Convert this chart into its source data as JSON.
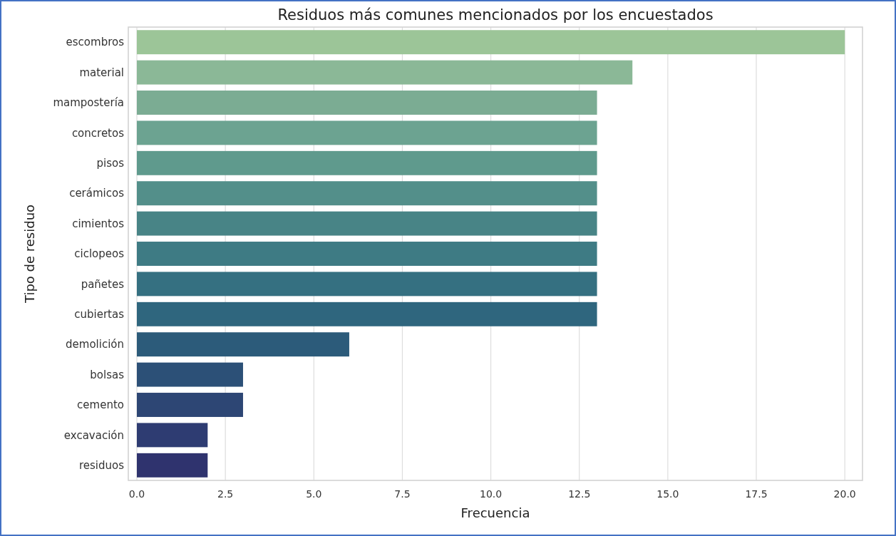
{
  "chart_data": {
    "type": "bar",
    "orientation": "horizontal",
    "title": "Residuos más comunes mencionados por los encuestados",
    "xlabel": "Frecuencia",
    "ylabel": "Tipo de residuo",
    "categories": [
      "escombros",
      "material",
      "mampostería",
      "concretos",
      "pisos",
      "cerámicos",
      "cimientos",
      "ciclopeos",
      "pañetes",
      "cubiertas",
      "demolición",
      "bolsas",
      "cemento",
      "excavación",
      "residuos"
    ],
    "values": [
      20,
      14,
      13,
      13,
      13,
      13,
      13,
      13,
      13,
      13,
      6,
      3,
      3,
      2,
      2
    ],
    "colors": [
      "#9cc598",
      "#8bb897",
      "#7bac93",
      "#6ca391",
      "#5f9a8d",
      "#538f8a",
      "#488486",
      "#3e7b84",
      "#357081",
      "#2f667e",
      "#2c5b7a",
      "#2c5077",
      "#2d4674",
      "#2e3c72",
      "#2f336e"
    ],
    "xlim": [
      0,
      20.5
    ],
    "xticks": [
      {
        "value": 0,
        "label": "0.0"
      },
      {
        "value": 2.5,
        "label": "2.5"
      },
      {
        "value": 5,
        "label": "5.0"
      },
      {
        "value": 7.5,
        "label": "7.5"
      },
      {
        "value": 10,
        "label": "10.0"
      },
      {
        "value": 12.5,
        "label": "12.5"
      },
      {
        "value": 15,
        "label": "15.0"
      },
      {
        "value": 17.5,
        "label": "17.5"
      },
      {
        "value": 20,
        "label": "20.0"
      }
    ],
    "grid": "x"
  }
}
